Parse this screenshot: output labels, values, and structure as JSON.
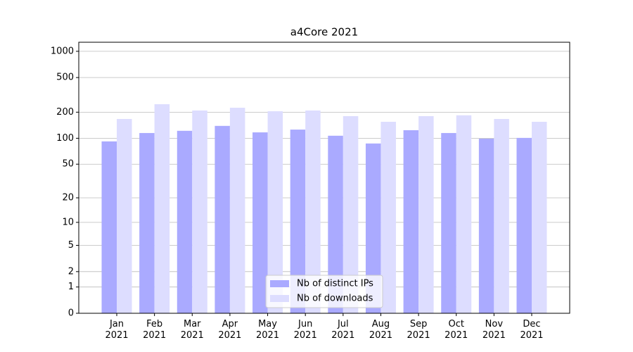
{
  "chart_data": {
    "type": "bar",
    "title": "a4Core 2021",
    "categories": [
      "Jan\n2021",
      "Feb\n2021",
      "Mar\n2021",
      "Apr\n2021",
      "May\n2021",
      "Jun\n2021",
      "Jul\n2021",
      "Aug\n2021",
      "Sep\n2021",
      "Oct\n2021",
      "Nov\n2021",
      "Dec\n2021"
    ],
    "series": [
      {
        "name": "Nb of distinct IPs",
        "color": "#aaaaff",
        "values": [
          92,
          115,
          122,
          139,
          117,
          126,
          107,
          87,
          124,
          115,
          99,
          101
        ]
      },
      {
        "name": "Nb of downloads",
        "color": "#ddddff",
        "values": [
          167,
          247,
          209,
          225,
          205,
          209,
          180,
          155,
          180,
          184,
          167,
          155
        ]
      }
    ],
    "yscale": "log1p",
    "ylim": [
      0,
      1270
    ],
    "yticks": [
      0,
      1,
      2,
      5,
      10,
      20,
      50,
      100,
      200,
      500,
      1000
    ],
    "grid": true,
    "legend": "lower center"
  }
}
